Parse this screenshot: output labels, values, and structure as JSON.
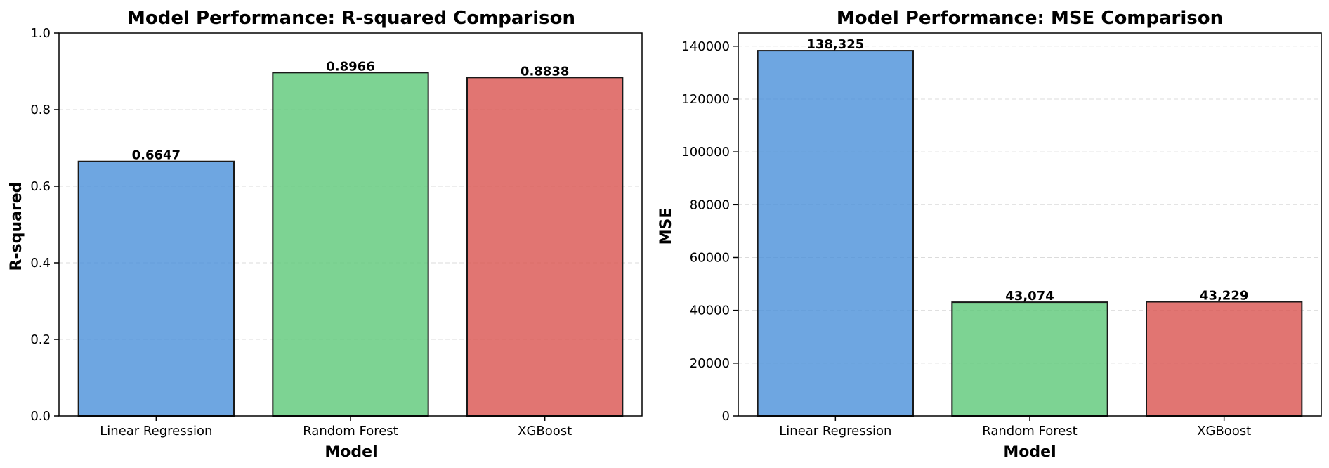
{
  "chart_data": [
    {
      "type": "bar",
      "title": "Model Performance: R-squared Comparison",
      "xlabel": "Model",
      "ylabel": "R-squared",
      "categories": [
        "Linear Regression",
        "Random Forest",
        "XGBoost"
      ],
      "values": [
        0.6647,
        0.8966,
        0.8838
      ],
      "value_labels": [
        "0.6647",
        "0.8966",
        "0.8838"
      ],
      "ylim": [
        0,
        1.0
      ],
      "yticks": [
        0.0,
        0.2,
        0.4,
        0.6,
        0.8,
        1.0
      ],
      "ytick_labels": [
        "0.0",
        "0.2",
        "0.4",
        "0.6",
        "0.8",
        "1.0"
      ],
      "colors": [
        "#4a90d9",
        "#5cc878",
        "#d9534f"
      ],
      "grid": "y dashed"
    },
    {
      "type": "bar",
      "title": "Model Performance: MSE Comparison",
      "xlabel": "Model",
      "ylabel": "MSE",
      "categories": [
        "Linear Regression",
        "Random Forest",
        "XGBoost"
      ],
      "values": [
        138325,
        43074,
        43229
      ],
      "value_labels": [
        "138,325",
        "43,074",
        "43,229"
      ],
      "ylim": [
        0,
        145000
      ],
      "yticks": [
        0,
        20000,
        40000,
        60000,
        80000,
        100000,
        120000,
        140000
      ],
      "ytick_labels": [
        "0",
        "20000",
        "40000",
        "60000",
        "80000",
        "100000",
        "120000",
        "140000"
      ],
      "colors": [
        "#4a90d9",
        "#5cc878",
        "#d9534f"
      ],
      "grid": "y dashed"
    }
  ]
}
